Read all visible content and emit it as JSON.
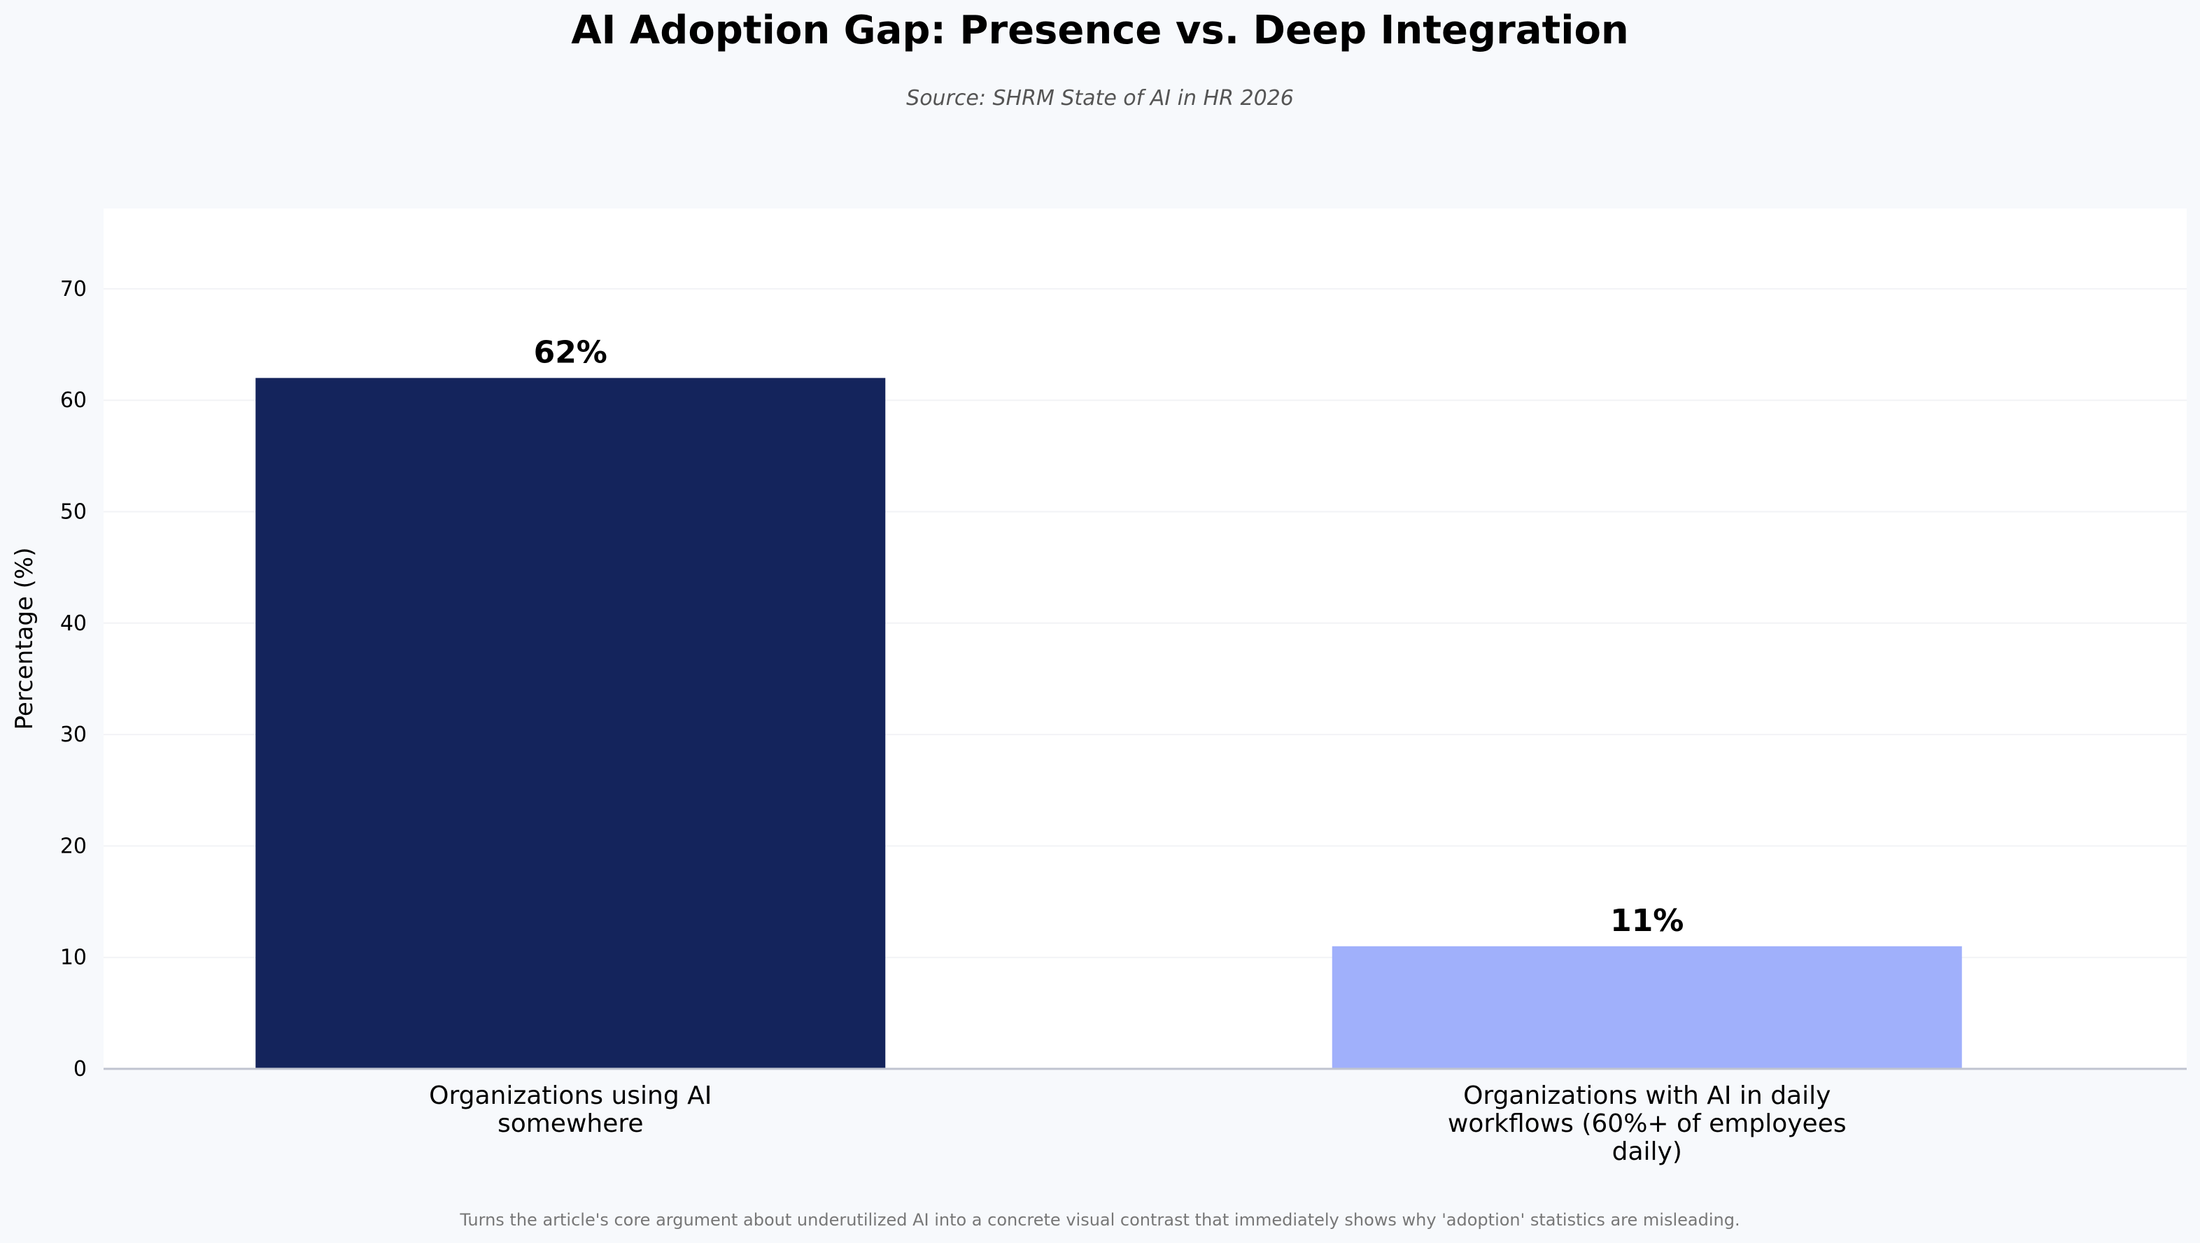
{
  "chart_data": {
    "type": "bar",
    "title": "AI Adoption Gap: Presence vs. Deep Integration",
    "subtitle": "Source: SHRM State of AI in HR 2026",
    "ylabel": "Percentage (%)",
    "xlabel": "",
    "categories": [
      "Organizations using AI\nsomewhere",
      "Organizations with AI in daily\nworkflows (60%+ of employees\ndaily)"
    ],
    "values": [
      62,
      11
    ],
    "data_labels": [
      "62%",
      "11%"
    ],
    "colors": [
      "#14245c",
      "#a0b0fb"
    ],
    "ylim": [
      0,
      77
    ],
    "yticks": [
      0,
      10,
      20,
      30,
      40,
      50,
      60,
      70
    ],
    "grid": true,
    "footer": "Turns the article's core argument about underutilized AI into a concrete visual contrast that immediately shows why 'adoption' statistics are misleading."
  }
}
